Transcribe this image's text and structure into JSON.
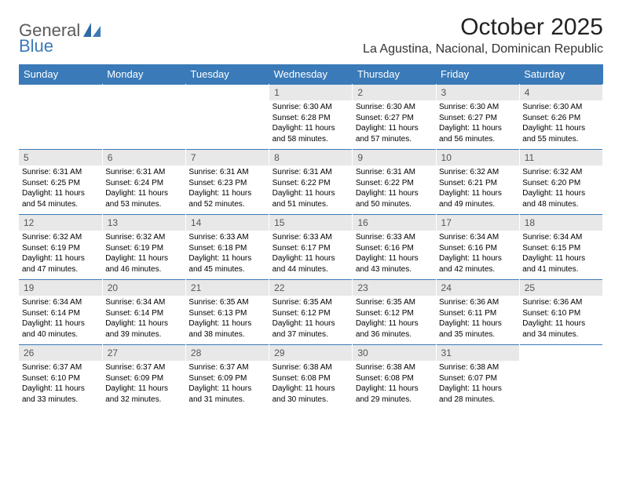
{
  "logo": {
    "general": "General",
    "blue": "Blue"
  },
  "title": "October 2025",
  "location": "La Agustina, Nacional, Dominican Republic",
  "colors": {
    "header_bg": "#3a7ab8",
    "header_text": "#ffffff",
    "date_bg": "#e8e8e8",
    "row_border": "#3a7ab8",
    "logo_gray": "#5a5a5a",
    "logo_blue": "#3a7ab8",
    "page_bg": "#ffffff"
  },
  "fonts": {
    "title_size": 30,
    "location_size": 16,
    "header_size": 13,
    "date_size": 12,
    "detail_size": 10
  },
  "day_headers": [
    "Sunday",
    "Monday",
    "Tuesday",
    "Wednesday",
    "Thursday",
    "Friday",
    "Saturday"
  ],
  "weeks": [
    {
      "dates": [
        "",
        "",
        "",
        "1",
        "2",
        "3",
        "4"
      ],
      "details": [
        {
          "sunrise": "",
          "sunset": "",
          "daylight": ""
        },
        {
          "sunrise": "",
          "sunset": "",
          "daylight": ""
        },
        {
          "sunrise": "",
          "sunset": "",
          "daylight": ""
        },
        {
          "sunrise": "Sunrise: 6:30 AM",
          "sunset": "Sunset: 6:28 PM",
          "daylight": "Daylight: 11 hours and 58 minutes."
        },
        {
          "sunrise": "Sunrise: 6:30 AM",
          "sunset": "Sunset: 6:27 PM",
          "daylight": "Daylight: 11 hours and 57 minutes."
        },
        {
          "sunrise": "Sunrise: 6:30 AM",
          "sunset": "Sunset: 6:27 PM",
          "daylight": "Daylight: 11 hours and 56 minutes."
        },
        {
          "sunrise": "Sunrise: 6:30 AM",
          "sunset": "Sunset: 6:26 PM",
          "daylight": "Daylight: 11 hours and 55 minutes."
        }
      ]
    },
    {
      "dates": [
        "5",
        "6",
        "7",
        "8",
        "9",
        "10",
        "11"
      ],
      "details": [
        {
          "sunrise": "Sunrise: 6:31 AM",
          "sunset": "Sunset: 6:25 PM",
          "daylight": "Daylight: 11 hours and 54 minutes."
        },
        {
          "sunrise": "Sunrise: 6:31 AM",
          "sunset": "Sunset: 6:24 PM",
          "daylight": "Daylight: 11 hours and 53 minutes."
        },
        {
          "sunrise": "Sunrise: 6:31 AM",
          "sunset": "Sunset: 6:23 PM",
          "daylight": "Daylight: 11 hours and 52 minutes."
        },
        {
          "sunrise": "Sunrise: 6:31 AM",
          "sunset": "Sunset: 6:22 PM",
          "daylight": "Daylight: 11 hours and 51 minutes."
        },
        {
          "sunrise": "Sunrise: 6:31 AM",
          "sunset": "Sunset: 6:22 PM",
          "daylight": "Daylight: 11 hours and 50 minutes."
        },
        {
          "sunrise": "Sunrise: 6:32 AM",
          "sunset": "Sunset: 6:21 PM",
          "daylight": "Daylight: 11 hours and 49 minutes."
        },
        {
          "sunrise": "Sunrise: 6:32 AM",
          "sunset": "Sunset: 6:20 PM",
          "daylight": "Daylight: 11 hours and 48 minutes."
        }
      ]
    },
    {
      "dates": [
        "12",
        "13",
        "14",
        "15",
        "16",
        "17",
        "18"
      ],
      "details": [
        {
          "sunrise": "Sunrise: 6:32 AM",
          "sunset": "Sunset: 6:19 PM",
          "daylight": "Daylight: 11 hours and 47 minutes."
        },
        {
          "sunrise": "Sunrise: 6:32 AM",
          "sunset": "Sunset: 6:19 PM",
          "daylight": "Daylight: 11 hours and 46 minutes."
        },
        {
          "sunrise": "Sunrise: 6:33 AM",
          "sunset": "Sunset: 6:18 PM",
          "daylight": "Daylight: 11 hours and 45 minutes."
        },
        {
          "sunrise": "Sunrise: 6:33 AM",
          "sunset": "Sunset: 6:17 PM",
          "daylight": "Daylight: 11 hours and 44 minutes."
        },
        {
          "sunrise": "Sunrise: 6:33 AM",
          "sunset": "Sunset: 6:16 PM",
          "daylight": "Daylight: 11 hours and 43 minutes."
        },
        {
          "sunrise": "Sunrise: 6:34 AM",
          "sunset": "Sunset: 6:16 PM",
          "daylight": "Daylight: 11 hours and 42 minutes."
        },
        {
          "sunrise": "Sunrise: 6:34 AM",
          "sunset": "Sunset: 6:15 PM",
          "daylight": "Daylight: 11 hours and 41 minutes."
        }
      ]
    },
    {
      "dates": [
        "19",
        "20",
        "21",
        "22",
        "23",
        "24",
        "25"
      ],
      "details": [
        {
          "sunrise": "Sunrise: 6:34 AM",
          "sunset": "Sunset: 6:14 PM",
          "daylight": "Daylight: 11 hours and 40 minutes."
        },
        {
          "sunrise": "Sunrise: 6:34 AM",
          "sunset": "Sunset: 6:14 PM",
          "daylight": "Daylight: 11 hours and 39 minutes."
        },
        {
          "sunrise": "Sunrise: 6:35 AM",
          "sunset": "Sunset: 6:13 PM",
          "daylight": "Daylight: 11 hours and 38 minutes."
        },
        {
          "sunrise": "Sunrise: 6:35 AM",
          "sunset": "Sunset: 6:12 PM",
          "daylight": "Daylight: 11 hours and 37 minutes."
        },
        {
          "sunrise": "Sunrise: 6:35 AM",
          "sunset": "Sunset: 6:12 PM",
          "daylight": "Daylight: 11 hours and 36 minutes."
        },
        {
          "sunrise": "Sunrise: 6:36 AM",
          "sunset": "Sunset: 6:11 PM",
          "daylight": "Daylight: 11 hours and 35 minutes."
        },
        {
          "sunrise": "Sunrise: 6:36 AM",
          "sunset": "Sunset: 6:10 PM",
          "daylight": "Daylight: 11 hours and 34 minutes."
        }
      ]
    },
    {
      "dates": [
        "26",
        "27",
        "28",
        "29",
        "30",
        "31",
        ""
      ],
      "details": [
        {
          "sunrise": "Sunrise: 6:37 AM",
          "sunset": "Sunset: 6:10 PM",
          "daylight": "Daylight: 11 hours and 33 minutes."
        },
        {
          "sunrise": "Sunrise: 6:37 AM",
          "sunset": "Sunset: 6:09 PM",
          "daylight": "Daylight: 11 hours and 32 minutes."
        },
        {
          "sunrise": "Sunrise: 6:37 AM",
          "sunset": "Sunset: 6:09 PM",
          "daylight": "Daylight: 11 hours and 31 minutes."
        },
        {
          "sunrise": "Sunrise: 6:38 AM",
          "sunset": "Sunset: 6:08 PM",
          "daylight": "Daylight: 11 hours and 30 minutes."
        },
        {
          "sunrise": "Sunrise: 6:38 AM",
          "sunset": "Sunset: 6:08 PM",
          "daylight": "Daylight: 11 hours and 29 minutes."
        },
        {
          "sunrise": "Sunrise: 6:38 AM",
          "sunset": "Sunset: 6:07 PM",
          "daylight": "Daylight: 11 hours and 28 minutes."
        },
        {
          "sunrise": "",
          "sunset": "",
          "daylight": ""
        }
      ]
    }
  ]
}
